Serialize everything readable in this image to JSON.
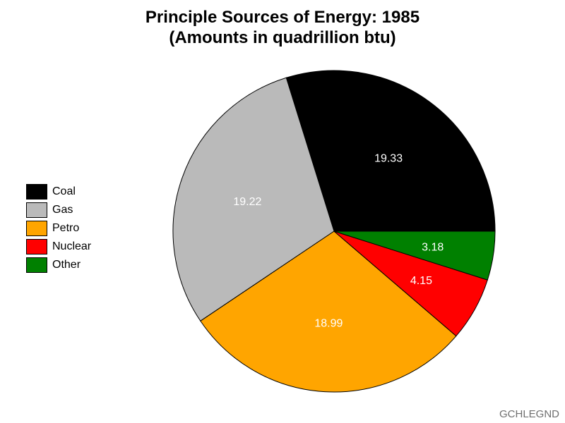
{
  "title_line1": "Principle Sources of Energy: 1985",
  "title_line2": "(Amounts in quadrillion btu)",
  "footer": "GCHLEGND",
  "chart_data": {
    "type": "pie",
    "title": "Principle Sources of Energy: 1985 (Amounts in quadrillion btu)",
    "legend_position": "left",
    "slices": [
      {
        "label": "Coal",
        "value": 19.33,
        "color": "#000000",
        "text_color": "#ffffff"
      },
      {
        "label": "Gas",
        "value": 19.22,
        "color": "#bababa",
        "text_color": "#ffffff"
      },
      {
        "label": "Petro",
        "value": 18.99,
        "color": "#ffa500",
        "text_color": "#ffffff"
      },
      {
        "label": "Nuclear",
        "value": 4.15,
        "color": "#ff0000",
        "text_color": "#ffffff"
      },
      {
        "label": "Other",
        "value": 3.18,
        "color": "#008000",
        "text_color": "#ffffff"
      }
    ],
    "value_labels": [
      "19.33",
      "19.22",
      "18.99",
      "4.15",
      "3.18"
    ]
  }
}
